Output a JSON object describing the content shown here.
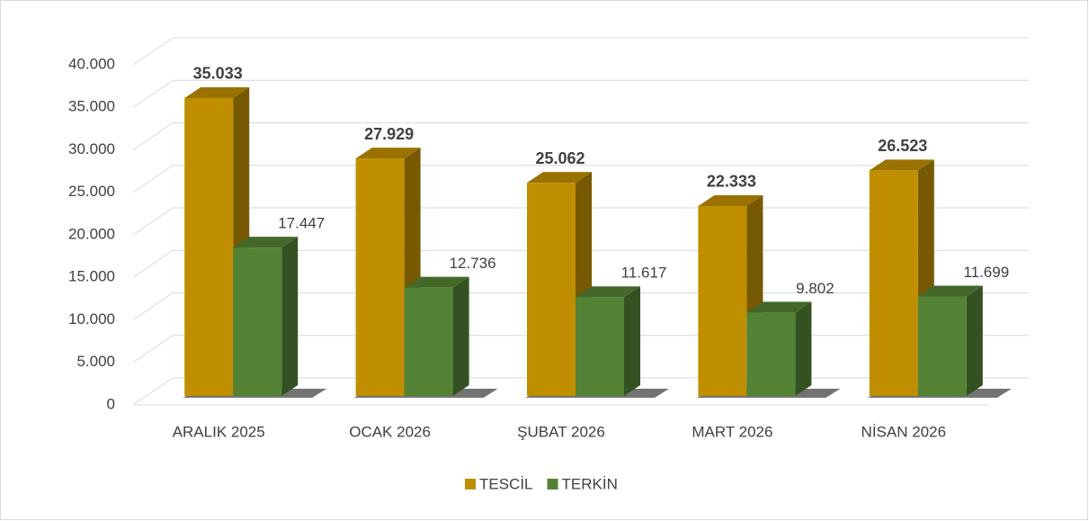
{
  "chart_data": {
    "type": "bar3d",
    "categories": [
      "ARALIK 2025",
      "OCAK 2026",
      "ŞUBAT 2026",
      "MART 2026",
      "NİSAN 2026"
    ],
    "series": [
      {
        "name": "TESCİL",
        "color": "#BF8F00",
        "values": [
          35033,
          27929,
          25062,
          22333,
          26523
        ],
        "value_labels": [
          "35.033",
          "27.929",
          "25.062",
          "22.333",
          "26.523"
        ]
      },
      {
        "name": "TERKİN",
        "color": "#548235",
        "values": [
          17447,
          12736,
          11617,
          9802,
          11699
        ],
        "value_labels": [
          "17.447",
          "12.736",
          "11.617",
          "9.802",
          "11.699"
        ]
      }
    ],
    "ylim": [
      0,
      40000
    ],
    "yticks": [
      0,
      {
        "value": 5000,
        "label": "5.000"
      },
      {
        "value": 10000,
        "label": "10.000"
      },
      {
        "value": 15000,
        "label": "15.000"
      },
      {
        "value": 20000,
        "label": "20.000"
      },
      {
        "value": 25000,
        "label": "25.000"
      },
      {
        "value": 30000,
        "label": "30.000"
      },
      {
        "value": 35000,
        "label": "35.000"
      },
      {
        "value": 40000,
        "label": "40.000"
      }
    ],
    "grid": true,
    "legend": "bottom"
  }
}
